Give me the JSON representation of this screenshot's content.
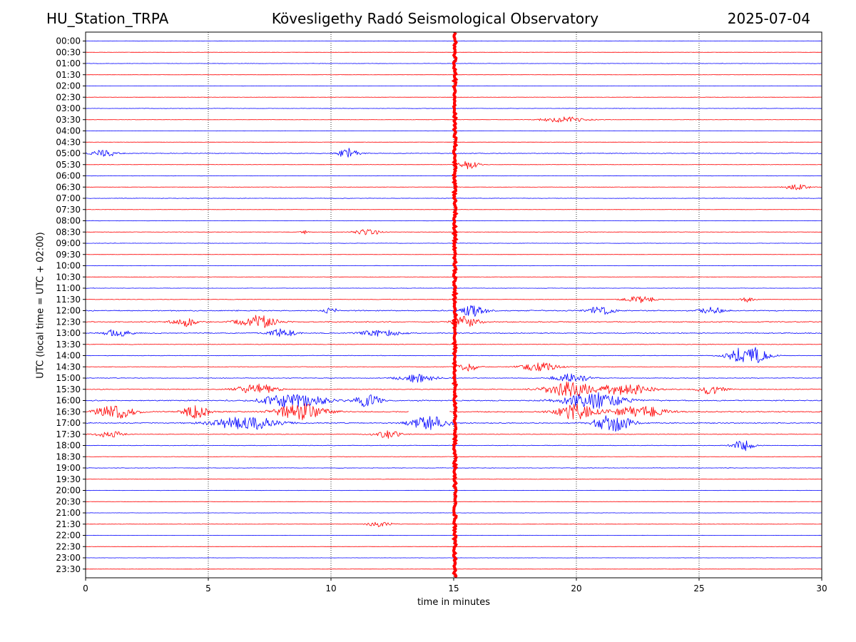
{
  "header": {
    "station": "HU_Station_TRPA",
    "title": "Kövesligethy Radó Seismological Observatory",
    "date": "2025-07-04"
  },
  "colors": {
    "even_trace": "#0000ff",
    "odd_trace": "#ff0000",
    "spike": "#ff0000",
    "grid": "#000000"
  },
  "chart_data": {
    "type": "line",
    "title": "Kövesligethy Radó Seismological Observatory",
    "xlabel": "time in minutes",
    "ylabel": "UTC (local time = UTC + 02:00)",
    "xlim": [
      0,
      30
    ],
    "x_ticks": [
      0,
      5,
      10,
      15,
      20,
      25,
      30
    ],
    "grid": "vertical dotted at each x tick",
    "row_labels": [
      "00:00",
      "00:30",
      "01:00",
      "01:30",
      "02:00",
      "02:30",
      "03:00",
      "03:30",
      "04:00",
      "04:30",
      "05:00",
      "05:30",
      "06:00",
      "06:30",
      "07:00",
      "07:30",
      "08:00",
      "08:30",
      "09:00",
      "09:30",
      "10:00",
      "10:30",
      "11:00",
      "11:30",
      "12:00",
      "12:30",
      "13:00",
      "13:30",
      "14:00",
      "14:30",
      "15:00",
      "15:30",
      "16:00",
      "16:30",
      "17:00",
      "17:30",
      "18:00",
      "18:30",
      "19:00",
      "19:30",
      "20:00",
      "20:30",
      "21:00",
      "21:30",
      "22:00",
      "22:30",
      "23:00",
      "23:30"
    ],
    "row_colors": "alternating blue (full hour) / red (half hour)",
    "noise_level": [
      0.2,
      0.15,
      0.2,
      0.15,
      0.15,
      0.2,
      0.2,
      0.2,
      0.15,
      0.15,
      0.4,
      0.2,
      0.2,
      0.2,
      0.25,
      0.2,
      0.2,
      0.25,
      0.2,
      0.15,
      0.2,
      0.2,
      0.2,
      0.3,
      0.6,
      0.6,
      0.55,
      0.35,
      0.3,
      0.3,
      0.35,
      0.5,
      0.6,
      0.7,
      0.6,
      0.4,
      0.35,
      0.25,
      0.25,
      0.2,
      0.2,
      0.15,
      0.15,
      0.2,
      0.15,
      0.15,
      0.15,
      0.15
    ],
    "events": [
      {
        "row": 10,
        "x": 0.8,
        "amp": 5,
        "dur": 1.0
      },
      {
        "row": 10,
        "x": 10.7,
        "amp": 7,
        "dur": 0.8
      },
      {
        "row": 7,
        "x": 19.5,
        "amp": 4,
        "dur": 1.8
      },
      {
        "row": 11,
        "x": 15.6,
        "amp": 6,
        "dur": 0.8
      },
      {
        "row": 13,
        "x": 29.0,
        "amp": 4,
        "dur": 1.0
      },
      {
        "row": 17,
        "x": 11.5,
        "amp": 5,
        "dur": 1.0
      },
      {
        "row": 17,
        "x": 8.9,
        "amp": 3,
        "dur": 0.3
      },
      {
        "row": 23,
        "x": 22.6,
        "amp": 5,
        "dur": 1.2
      },
      {
        "row": 23,
        "x": 27.0,
        "amp": 4,
        "dur": 0.5
      },
      {
        "row": 24,
        "x": 10.0,
        "amp": 6,
        "dur": 0.5
      },
      {
        "row": 24,
        "x": 15.8,
        "amp": 8,
        "dur": 1.0
      },
      {
        "row": 24,
        "x": 21.0,
        "amp": 6,
        "dur": 1.0
      },
      {
        "row": 24,
        "x": 25.5,
        "amp": 5,
        "dur": 1.0
      },
      {
        "row": 25,
        "x": 4.0,
        "amp": 7,
        "dur": 1.0
      },
      {
        "row": 25,
        "x": 7.0,
        "amp": 9,
        "dur": 1.5
      },
      {
        "row": 25,
        "x": 15.5,
        "amp": 8,
        "dur": 1.0
      },
      {
        "row": 26,
        "x": 1.3,
        "amp": 6,
        "dur": 1.0
      },
      {
        "row": 26,
        "x": 8.0,
        "amp": 6,
        "dur": 1.0
      },
      {
        "row": 26,
        "x": 12.0,
        "amp": 5,
        "dur": 1.5
      },
      {
        "row": 28,
        "x": 27.0,
        "amp": 14,
        "dur": 1.5
      },
      {
        "row": 29,
        "x": 15.6,
        "amp": 6,
        "dur": 0.8
      },
      {
        "row": 29,
        "x": 18.5,
        "amp": 6,
        "dur": 1.5
      },
      {
        "row": 30,
        "x": 13.5,
        "amp": 6,
        "dur": 1.5
      },
      {
        "row": 30,
        "x": 19.8,
        "amp": 6,
        "dur": 1.5
      },
      {
        "row": 31,
        "x": 7.0,
        "amp": 8,
        "dur": 1.5
      },
      {
        "row": 31,
        "x": 19.7,
        "amp": 10,
        "dur": 2.0
      },
      {
        "row": 31,
        "x": 22.0,
        "amp": 8,
        "dur": 2.0
      },
      {
        "row": 31,
        "x": 25.5,
        "amp": 7,
        "dur": 1.0
      },
      {
        "row": 32,
        "x": 8.5,
        "amp": 10,
        "dur": 2.5
      },
      {
        "row": 32,
        "x": 11.5,
        "amp": 9,
        "dur": 1.0
      },
      {
        "row": 32,
        "x": 20.7,
        "amp": 11,
        "dur": 2.5
      },
      {
        "row": 33,
        "x": 1.2,
        "amp": 10,
        "dur": 1.5
      },
      {
        "row": 33,
        "x": 4.5,
        "amp": 9,
        "dur": 1.0
      },
      {
        "row": 33,
        "x": 8.8,
        "amp": 11,
        "dur": 2.0
      },
      {
        "row": 33,
        "x": 20.0,
        "amp": 11,
        "dur": 1.5
      },
      {
        "row": 33,
        "x": 22.5,
        "amp": 9,
        "dur": 2.0
      },
      {
        "row": 34,
        "x": 6.5,
        "amp": 10,
        "dur": 2.5
      },
      {
        "row": 34,
        "x": 14.0,
        "amp": 10,
        "dur": 1.5
      },
      {
        "row": 34,
        "x": 21.5,
        "amp": 12,
        "dur": 1.5
      },
      {
        "row": 35,
        "x": 1.0,
        "amp": 5,
        "dur": 1.0
      },
      {
        "row": 35,
        "x": 12.3,
        "amp": 6,
        "dur": 1.0
      },
      {
        "row": 36,
        "x": 26.8,
        "amp": 8,
        "dur": 0.8
      },
      {
        "row": 43,
        "x": 12.0,
        "amp": 4,
        "dur": 1.0
      }
    ],
    "gaps": [
      {
        "row": 33,
        "x0": 13.2,
        "x1": 14.8
      }
    ],
    "vertical_spike": {
      "x": 15.05,
      "from_row": 0,
      "to_row": 47
    }
  }
}
